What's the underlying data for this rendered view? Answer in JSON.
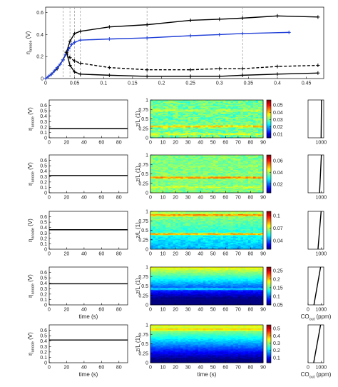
{
  "chart_data": [
    {
      "type": "line",
      "panel": "top-overview",
      "xlim": [
        0,
        0.48
      ],
      "ylim": [
        0,
        0.65
      ],
      "xticks": [
        0,
        0.05,
        0.1,
        0.15,
        0.2,
        0.25,
        0.3,
        0.35,
        0.4,
        0.45
      ],
      "yticks": [
        0,
        0.2,
        0.4,
        0.6
      ],
      "ylabel": "η",
      "ylabel_sub": "anode",
      "ylabel_unit": "(V)",
      "vlines": [
        0.03,
        0.042,
        0.05,
        0.06,
        0.175,
        0.34
      ],
      "series": [
        {
          "style": "black-solid-upper",
          "color": "#000000",
          "x": [
            0,
            0.01,
            0.02,
            0.03,
            0.036,
            0.042,
            0.05,
            0.06,
            0.11,
            0.175,
            0.25,
            0.3,
            0.34,
            0.4,
            0.47
          ],
          "values": [
            0.0,
            0.04,
            0.09,
            0.17,
            0.24,
            0.34,
            0.41,
            0.43,
            0.47,
            0.49,
            0.53,
            0.54,
            0.55,
            0.57,
            0.56
          ]
        },
        {
          "style": "blue-solid",
          "color": "#1f3fd6",
          "x": [
            0,
            0.005,
            0.01,
            0.015,
            0.02,
            0.025,
            0.03,
            0.035,
            0.04,
            0.045,
            0.05,
            0.06,
            0.11,
            0.175,
            0.25,
            0.3,
            0.34,
            0.42
          ],
          "values": [
            0.0,
            0.02,
            0.04,
            0.07,
            0.1,
            0.13,
            0.17,
            0.22,
            0.27,
            0.31,
            0.33,
            0.35,
            0.36,
            0.37,
            0.39,
            0.4,
            0.41,
            0.42
          ]
        },
        {
          "style": "black-dashed",
          "color": "#000000",
          "x": [
            0.036,
            0.042,
            0.05,
            0.06,
            0.11,
            0.175,
            0.25,
            0.3,
            0.34,
            0.4,
            0.47
          ],
          "values": [
            0.24,
            0.19,
            0.16,
            0.14,
            0.1,
            0.08,
            0.08,
            0.09,
            0.09,
            0.11,
            0.12
          ]
        },
        {
          "style": "black-solid-lower",
          "color": "#000000",
          "x": [
            0.036,
            0.042,
            0.05,
            0.06,
            0.11,
            0.175,
            0.25,
            0.3,
            0.34,
            0.4,
            0.47
          ],
          "values": [
            0.24,
            0.12,
            0.06,
            0.04,
            0.03,
            0.02,
            0.02,
            0.02,
            0.03,
            0.04,
            0.05
          ]
        }
      ]
    },
    {
      "type": "line",
      "panel": "row-1-eta",
      "xlim": [
        0,
        90
      ],
      "ylim": [
        0,
        0.7
      ],
      "xticks": [
        0,
        20,
        40,
        60,
        80
      ],
      "yticks": [
        0,
        0.1,
        0.2,
        0.3,
        0.4,
        0.5,
        0.6
      ],
      "ylabel": "η",
      "ylabel_sub": "anode",
      "ylabel_unit": "(V)",
      "series": [
        {
          "color": "#000000",
          "x": [
            0,
            90
          ],
          "values": [
            0.17,
            0.17
          ]
        }
      ]
    },
    {
      "type": "heatmap",
      "panel": "row-1-map",
      "xlim": [
        0,
        90
      ],
      "ylim": [
        0,
        1
      ],
      "xticks": [
        0,
        10,
        20,
        30,
        40,
        50,
        60,
        70,
        80,
        90
      ],
      "yticks": [
        0,
        0.25,
        0.5,
        0.75,
        1
      ],
      "ylabel": "z/L (1)",
      "colorbar": {
        "min": 0.005,
        "max": 0.057,
        "ticks": [
          0.01,
          0.02,
          0.03,
          0.04,
          0.05
        ]
      }
    },
    {
      "type": "line",
      "panel": "row-1-co",
      "xlim": [
        0,
        1200
      ],
      "ylim": [
        0,
        1
      ],
      "xticks": [
        1000
      ],
      "series": [
        {
          "color": "#000000",
          "x": [
            1000,
            1030
          ],
          "values": [
            0,
            1
          ]
        }
      ]
    },
    {
      "type": "line",
      "panel": "row-2-eta",
      "xlim": [
        0,
        90
      ],
      "ylim": [
        0,
        0.7
      ],
      "xticks": [
        0,
        20,
        40,
        60,
        80
      ],
      "yticks": [
        0,
        0.1,
        0.2,
        0.3,
        0.4,
        0.5,
        0.6
      ],
      "ylabel": "η",
      "ylabel_sub": "anode",
      "ylabel_unit": "(V)",
      "series": [
        {
          "color": "#000000",
          "x": [
            0,
            90
          ],
          "values": [
            0.32,
            0.32
          ]
        }
      ]
    },
    {
      "type": "heatmap",
      "panel": "row-2-map",
      "xlim": [
        0,
        90
      ],
      "ylim": [
        0,
        1
      ],
      "xticks": [
        0,
        10,
        20,
        30,
        40,
        50,
        60,
        70,
        80,
        90
      ],
      "yticks": [
        0,
        0.25,
        0.5,
        0.75,
        1
      ],
      "ylabel": "z/L (1)",
      "colorbar": {
        "min": 0.005,
        "max": 0.07,
        "ticks": [
          0.02,
          0.04,
          0.06
        ]
      }
    },
    {
      "type": "line",
      "panel": "row-2-co",
      "xlim": [
        0,
        1200
      ],
      "ylim": [
        0,
        1
      ],
      "xticks": [
        1000
      ],
      "series": [
        {
          "color": "#000000",
          "x": [
            880,
            1020
          ],
          "values": [
            0,
            1
          ]
        }
      ]
    },
    {
      "type": "line",
      "panel": "row-3-eta",
      "xlim": [
        0,
        90
      ],
      "ylim": [
        0,
        0.7
      ],
      "xticks": [
        0,
        20,
        40,
        60,
        80
      ],
      "yticks": [
        0,
        0.1,
        0.2,
        0.3,
        0.4,
        0.5,
        0.6
      ],
      "ylabel": "η",
      "ylabel_sub": "anode",
      "ylabel_unit": "(V)",
      "series": [
        {
          "color": "#000000",
          "x": [
            0,
            90
          ],
          "values": [
            0.36,
            0.36
          ]
        }
      ]
    },
    {
      "type": "heatmap",
      "panel": "row-3-map",
      "xlim": [
        0,
        90
      ],
      "ylim": [
        0,
        1
      ],
      "xticks": [
        0,
        10,
        20,
        30,
        40,
        50,
        60,
        70,
        80,
        90
      ],
      "yticks": [
        0,
        0.25,
        0.5,
        0.75,
        1
      ],
      "ylabel": "z/L (1)",
      "colorbar": {
        "min": 0.02,
        "max": 0.11,
        "ticks": [
          0.04,
          0.07,
          0.1
        ]
      }
    },
    {
      "type": "line",
      "panel": "row-3-co",
      "xlim": [
        0,
        1200
      ],
      "ylim": [
        0,
        1
      ],
      "xticks": [
        1000
      ],
      "series": [
        {
          "color": "#000000",
          "x": [
            760,
            1000
          ],
          "values": [
            0,
            1
          ]
        }
      ]
    },
    {
      "type": "line",
      "panel": "row-4-eta",
      "xlim": [
        0,
        90
      ],
      "ylim": [
        0,
        0.7
      ],
      "xticks": [
        0,
        20,
        40,
        60,
        80
      ],
      "yticks": [
        0,
        0.1,
        0.2,
        0.3,
        0.4,
        0.5,
        0.6
      ],
      "ylabel": "η",
      "ylabel_sub": "anode",
      "ylabel_unit": "(V)",
      "xlabel": "time (s)",
      "series": [
        {
          "color": "#000000",
          "x": [
            0,
            90
          ],
          "values": [
            0.39,
            0.39
          ]
        }
      ]
    },
    {
      "type": "heatmap",
      "panel": "row-4-map",
      "xlim": [
        0,
        90
      ],
      "ylim": [
        0,
        1
      ],
      "xticks": [
        0,
        10,
        20,
        30,
        40,
        50,
        60,
        70,
        80,
        90
      ],
      "yticks": [
        0,
        0.25,
        0.5,
        0.75,
        1
      ],
      "ylabel": "z/L (1)",
      "colorbar": {
        "min": 0.05,
        "max": 0.27,
        "ticks": [
          0.05,
          0.1,
          0.15,
          0.2,
          0.25
        ]
      }
    },
    {
      "type": "line",
      "panel": "row-4-co",
      "xlim": [
        0,
        1200
      ],
      "ylim": [
        0,
        1
      ],
      "xticks": [
        0,
        1000
      ],
      "xlabel": "CO",
      "xlabel_sub": "out",
      "xlabel_unit": "(ppm)",
      "series": [
        {
          "color": "#000000",
          "x": [
            450,
            960
          ],
          "values": [
            0,
            1
          ]
        }
      ]
    },
    {
      "type": "line",
      "panel": "row-5-eta",
      "xlim": [
        0,
        90
      ],
      "ylim": [
        0,
        0.7
      ],
      "xticks": [
        0,
        20,
        40,
        60,
        80
      ],
      "yticks": [
        0,
        0.1,
        0.2,
        0.3,
        0.4,
        0.5,
        0.6
      ],
      "ylabel": "η",
      "ylabel_sub": "anode",
      "ylabel_unit": "(V)",
      "xlabel": "time (s)",
      "series": [
        {
          "color": "#000000",
          "x": [
            0,
            90
          ],
          "values": [
            0.42,
            0.42
          ]
        }
      ]
    },
    {
      "type": "heatmap",
      "panel": "row-5-map",
      "xlim": [
        0,
        90
      ],
      "ylim": [
        0,
        1
      ],
      "xticks": [
        0,
        10,
        20,
        30,
        40,
        50,
        60,
        70,
        80,
        90
      ],
      "yticks": [
        0,
        0.25,
        0.5,
        0.75,
        1
      ],
      "ylabel": "z/L (1)",
      "xlabel": "time (s)",
      "colorbar": {
        "min": 0.03,
        "max": 0.55,
        "ticks": [
          0.1,
          0.2,
          0.3,
          0.4,
          0.5
        ]
      }
    },
    {
      "type": "line",
      "panel": "row-5-co",
      "xlim": [
        0,
        1200
      ],
      "ylim": [
        0,
        1
      ],
      "xticks": [
        0,
        1000
      ],
      "xlabel": "CO",
      "xlabel_sub": "out",
      "xlabel_unit": "(ppm)",
      "series": [
        {
          "color": "#000000",
          "x": [
            430,
            960
          ],
          "values": [
            0,
            1
          ]
        }
      ]
    }
  ],
  "colors": {
    "axis": "#000000",
    "blue_series": "#1f3fd6",
    "dashed_guide": "#999999"
  }
}
